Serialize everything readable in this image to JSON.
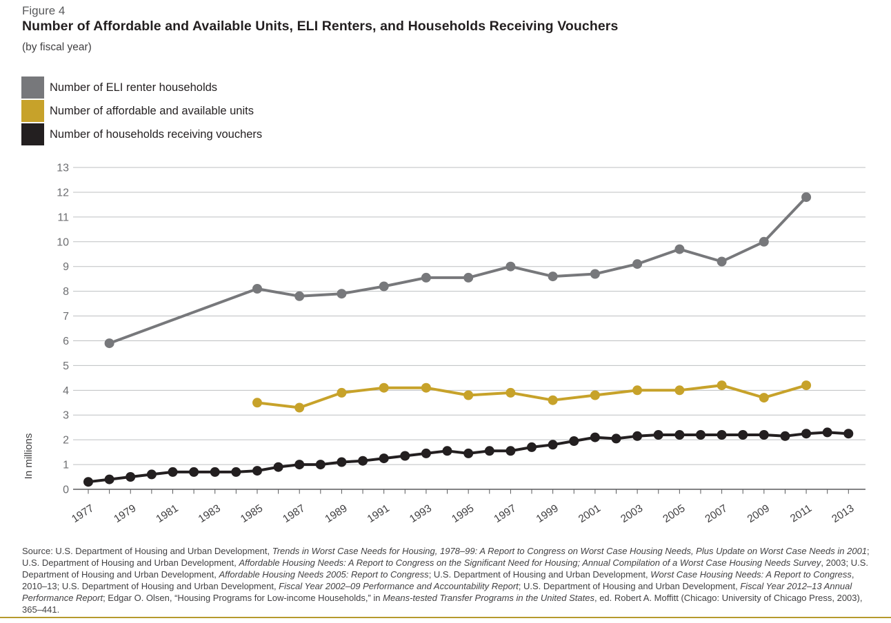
{
  "header": {
    "figure_label": "Figure 4",
    "title": "Number of Affordable and Available Units, ELI Renters, and Households Receiving Vouchers",
    "subtitle": "(by fiscal year)"
  },
  "colors": {
    "bottom_rule": "#b5992d",
    "gridline": "#bdbfc1",
    "axis": "#58595b",
    "y_tick_label": "#6d6e71",
    "x_tick_label": "#414042"
  },
  "chart_data": {
    "type": "line",
    "title": "Number of Affordable and Available Units, ELI Renters, and Households Receiving Vouchers",
    "subtitle": "(by fiscal year)",
    "xlabel": "",
    "ylabel": "In millions",
    "ylim": [
      0,
      13
    ],
    "y_tick_step": 1,
    "x_range": [
      1977,
      2013
    ],
    "x_label_step": 2,
    "x_tick_labels": [
      "1977",
      "1979",
      "1981",
      "1983",
      "1985",
      "1987",
      "1989",
      "1991",
      "1993",
      "1995",
      "1997",
      "1999",
      "2001",
      "2003",
      "2005",
      "2007",
      "2009",
      "2011",
      "2013"
    ],
    "grid": true,
    "legend_position": "top-left",
    "series": [
      {
        "name": "Number of ELI renter households",
        "color": "#77787b",
        "points": [
          [
            1978,
            5.9
          ],
          [
            1985,
            8.1
          ],
          [
            1987,
            7.8
          ],
          [
            1989,
            7.9
          ],
          [
            1991,
            8.2
          ],
          [
            1993,
            8.55
          ],
          [
            1995,
            8.55
          ],
          [
            1997,
            9.0
          ],
          [
            1999,
            8.6
          ],
          [
            2001,
            8.7
          ],
          [
            2003,
            9.1
          ],
          [
            2005,
            9.7
          ],
          [
            2007,
            9.2
          ],
          [
            2009,
            10.0
          ],
          [
            2011,
            11.8
          ]
        ]
      },
      {
        "name": "Number of affordable and available units",
        "color": "#c7a22a",
        "points": [
          [
            1985,
            3.5
          ],
          [
            1987,
            3.3
          ],
          [
            1989,
            3.9
          ],
          [
            1991,
            4.1
          ],
          [
            1993,
            4.1
          ],
          [
            1995,
            3.8
          ],
          [
            1997,
            3.9
          ],
          [
            1999,
            3.6
          ],
          [
            2001,
            3.8
          ],
          [
            2003,
            4.0
          ],
          [
            2005,
            4.0
          ],
          [
            2007,
            4.2
          ],
          [
            2009,
            3.7
          ],
          [
            2011,
            4.2
          ]
        ]
      },
      {
        "name": "Number of households receiving vouchers",
        "color": "#231f20",
        "points": [
          [
            1977,
            0.3
          ],
          [
            1978,
            0.4
          ],
          [
            1979,
            0.5
          ],
          [
            1980,
            0.6
          ],
          [
            1981,
            0.7
          ],
          [
            1982,
            0.7
          ],
          [
            1983,
            0.7
          ],
          [
            1984,
            0.7
          ],
          [
            1985,
            0.75
          ],
          [
            1986,
            0.9
          ],
          [
            1987,
            1.0
          ],
          [
            1988,
            1.0
          ],
          [
            1989,
            1.1
          ],
          [
            1990,
            1.15
          ],
          [
            1991,
            1.25
          ],
          [
            1992,
            1.35
          ],
          [
            1993,
            1.45
          ],
          [
            1994,
            1.55
          ],
          [
            1995,
            1.45
          ],
          [
            1996,
            1.55
          ],
          [
            1997,
            1.55
          ],
          [
            1998,
            1.7
          ],
          [
            1999,
            1.8
          ],
          [
            2000,
            1.95
          ],
          [
            2001,
            2.1
          ],
          [
            2002,
            2.05
          ],
          [
            2003,
            2.15
          ],
          [
            2004,
            2.2
          ],
          [
            2005,
            2.2
          ],
          [
            2006,
            2.2
          ],
          [
            2007,
            2.2
          ],
          [
            2008,
            2.2
          ],
          [
            2009,
            2.2
          ],
          [
            2010,
            2.15
          ],
          [
            2011,
            2.25
          ],
          [
            2012,
            2.3
          ],
          [
            2013,
            2.25
          ]
        ]
      }
    ]
  },
  "source": {
    "segments": [
      {
        "t": "Source: U.S. Department of Housing and Urban Development, ",
        "i": false
      },
      {
        "t": "Trends in Worst Case Needs for Housing, 1978–99: A Report to Congress on Worst Case Housing Needs, Plus Update on Worst Case Needs in 2001",
        "i": true
      },
      {
        "t": "; U.S. Department of Housing and Urban Development, ",
        "i": false
      },
      {
        "t": "Affordable Housing Needs: A Report to Congress on the Significant Need for Housing; Annual Compilation of a Worst Case Housing Needs Survey",
        "i": true
      },
      {
        "t": ", 2003; U.S. Department of Housing and Urban Development, ",
        "i": false
      },
      {
        "t": "Affordable Housing Needs 2005: Report to Congress",
        "i": true
      },
      {
        "t": "; U.S. Department of Housing and Urban Development, ",
        "i": false
      },
      {
        "t": "Worst Case Housing Needs: A Report to Congress",
        "i": true
      },
      {
        "t": ", 2010–13; U.S. Department of Housing and Urban Development, ",
        "i": false
      },
      {
        "t": "Fiscal Year 2002–09 Performance and Accountability Report",
        "i": true
      },
      {
        "t": "; U.S. Department of Housing and Urban Development, ",
        "i": false
      },
      {
        "t": "Fiscal Year 2012–13 Annual Performance Report",
        "i": true
      },
      {
        "t": "; Edgar O. Olsen, “Housing Programs for Low-income Households,” in ",
        "i": false
      },
      {
        "t": "Means-tested Transfer Programs in the United States",
        "i": true
      },
      {
        "t": ", ed. Robert A. Moffitt (Chicago: University of Chicago Press, 2003), 365–441.",
        "i": false
      }
    ]
  }
}
